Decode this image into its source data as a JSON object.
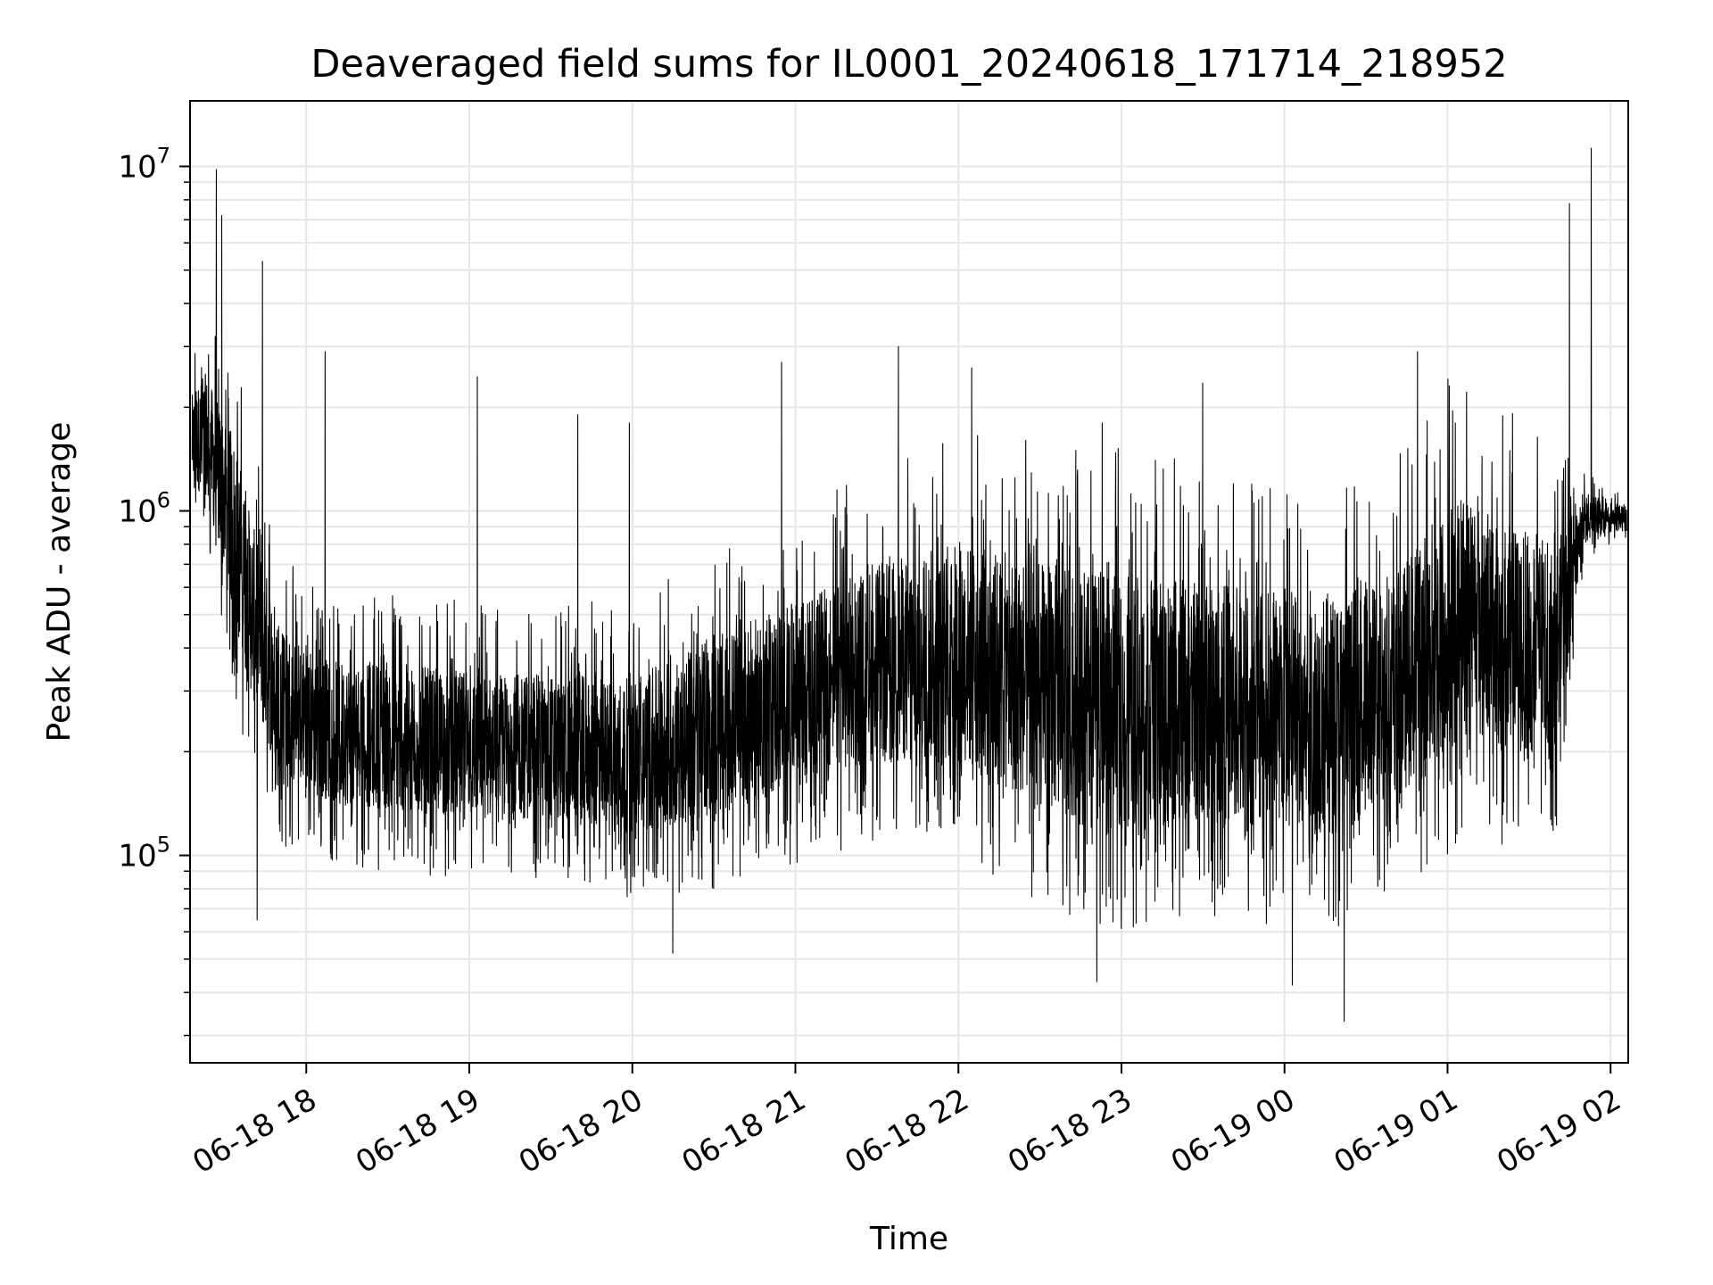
{
  "chart_data": {
    "type": "line",
    "title": "Deaveraged field sums for IL0001_20240618_171714_218952",
    "xlabel": "Time",
    "ylabel": "Peak ADU - average",
    "xscale": "time",
    "yscale": "log",
    "grid": true,
    "line_color": "#000000",
    "xlim": [
      "2024-06-18T17:17:14",
      "2024-06-19T02:06:30"
    ],
    "ylim": [
      25000,
      15500000
    ],
    "x_ticks": [
      {
        "t": "2024-06-18T18:00",
        "label": "06-18 18"
      },
      {
        "t": "2024-06-18T19:00",
        "label": "06-18 19"
      },
      {
        "t": "2024-06-18T20:00",
        "label": "06-18 20"
      },
      {
        "t": "2024-06-18T21:00",
        "label": "06-18 21"
      },
      {
        "t": "2024-06-18T22:00",
        "label": "06-18 22"
      },
      {
        "t": "2024-06-18T23:00",
        "label": "06-18 23"
      },
      {
        "t": "2024-06-19T00:00",
        "label": "06-19 00"
      },
      {
        "t": "2024-06-19T01:00",
        "label": "06-19 01"
      },
      {
        "t": "2024-06-19T02:00",
        "label": "06-19 02"
      }
    ],
    "y_ticks": [
      {
        "value": 100000,
        "base": "10",
        "exp": "5"
      },
      {
        "value": 1000000,
        "base": "10",
        "exp": "6"
      },
      {
        "value": 10000000,
        "base": "10",
        "exp": "7"
      }
    ],
    "series": [
      {
        "x": [
          "2024-06-18T17:18",
          "2024-06-18T17:23",
          "2024-06-18T17:28",
          "2024-06-18T17:33",
          "2024-06-18T17:38",
          "2024-06-18T17:43",
          "2024-06-18T17:48",
          "2024-06-18T17:53",
          "2024-06-18T17:58",
          "2024-06-18T18:10",
          "2024-06-18T18:30",
          "2024-06-18T19:00",
          "2024-06-18T19:30",
          "2024-06-18T20:00",
          "2024-06-18T20:30",
          "2024-06-18T21:00",
          "2024-06-18T21:30",
          "2024-06-18T22:00",
          "2024-06-18T22:30",
          "2024-06-18T23:00",
          "2024-06-18T23:30",
          "2024-06-19T00:00",
          "2024-06-19T00:20",
          "2024-06-19T00:40",
          "2024-06-19T01:00",
          "2024-06-19T01:10",
          "2024-06-19T01:20",
          "2024-06-19T01:30",
          "2024-06-19T01:40",
          "2024-06-19T01:50",
          "2024-06-19T02:00",
          "2024-06-19T02:06"
        ],
        "low": [
          900000,
          800000,
          500000,
          300000,
          200000,
          150000,
          120000,
          100000,
          110000,
          95000,
          90000,
          85000,
          85000,
          75000,
          80000,
          95000,
          110000,
          100000,
          70000,
          60000,
          65000,
          60000,
          60000,
          80000,
          90000,
          150000,
          100000,
          100000,
          120000,
          700000,
          800000,
          820000
        ],
        "high": [
          2800000,
          3500000,
          3000000,
          2800000,
          1800000,
          1200000,
          900000,
          700000,
          600000,
          550000,
          550000,
          500000,
          500000,
          500000,
          700000,
          900000,
          1200000,
          1500000,
          1400000,
          1300000,
          1200000,
          1200000,
          1100000,
          1200000,
          2200000,
          2100000,
          1800000,
          1600000,
          1400000,
          1300000,
          1150000,
          1100000
        ],
        "spikes": [
          {
            "t": "2024-06-18T17:27",
            "value": 9800000
          },
          {
            "t": "2024-06-18T17:29",
            "value": 7200000
          },
          {
            "t": "2024-06-18T17:44",
            "value": 5300000
          },
          {
            "t": "2024-06-18T18:07",
            "value": 2900000
          },
          {
            "t": "2024-06-18T19:03",
            "value": 2450000
          },
          {
            "t": "2024-06-18T19:40",
            "value": 1900000
          },
          {
            "t": "2024-06-18T19:59",
            "value": 1800000
          },
          {
            "t": "2024-06-18T20:55",
            "value": 2700000
          },
          {
            "t": "2024-06-18T21:38",
            "value": 3000000
          },
          {
            "t": "2024-06-18T22:05",
            "value": 2600000
          },
          {
            "t": "2024-06-18T22:53",
            "value": 1800000
          },
          {
            "t": "2024-06-18T23:30",
            "value": 2350000
          },
          {
            "t": "2024-06-19T00:49",
            "value": 2900000
          },
          {
            "t": "2024-06-19T01:45",
            "value": 7800000
          },
          {
            "t": "2024-06-19T01:53",
            "value": 11300000
          },
          {
            "t": "2024-06-18T22:51",
            "value": 43000
          },
          {
            "t": "2024-06-19T00:22",
            "value": 33000
          },
          {
            "t": "2024-06-19T00:03",
            "value": 42000
          },
          {
            "t": "2024-06-18T17:42",
            "value": 65000
          },
          {
            "t": "2024-06-18T20:15",
            "value": 52000
          }
        ]
      }
    ]
  }
}
